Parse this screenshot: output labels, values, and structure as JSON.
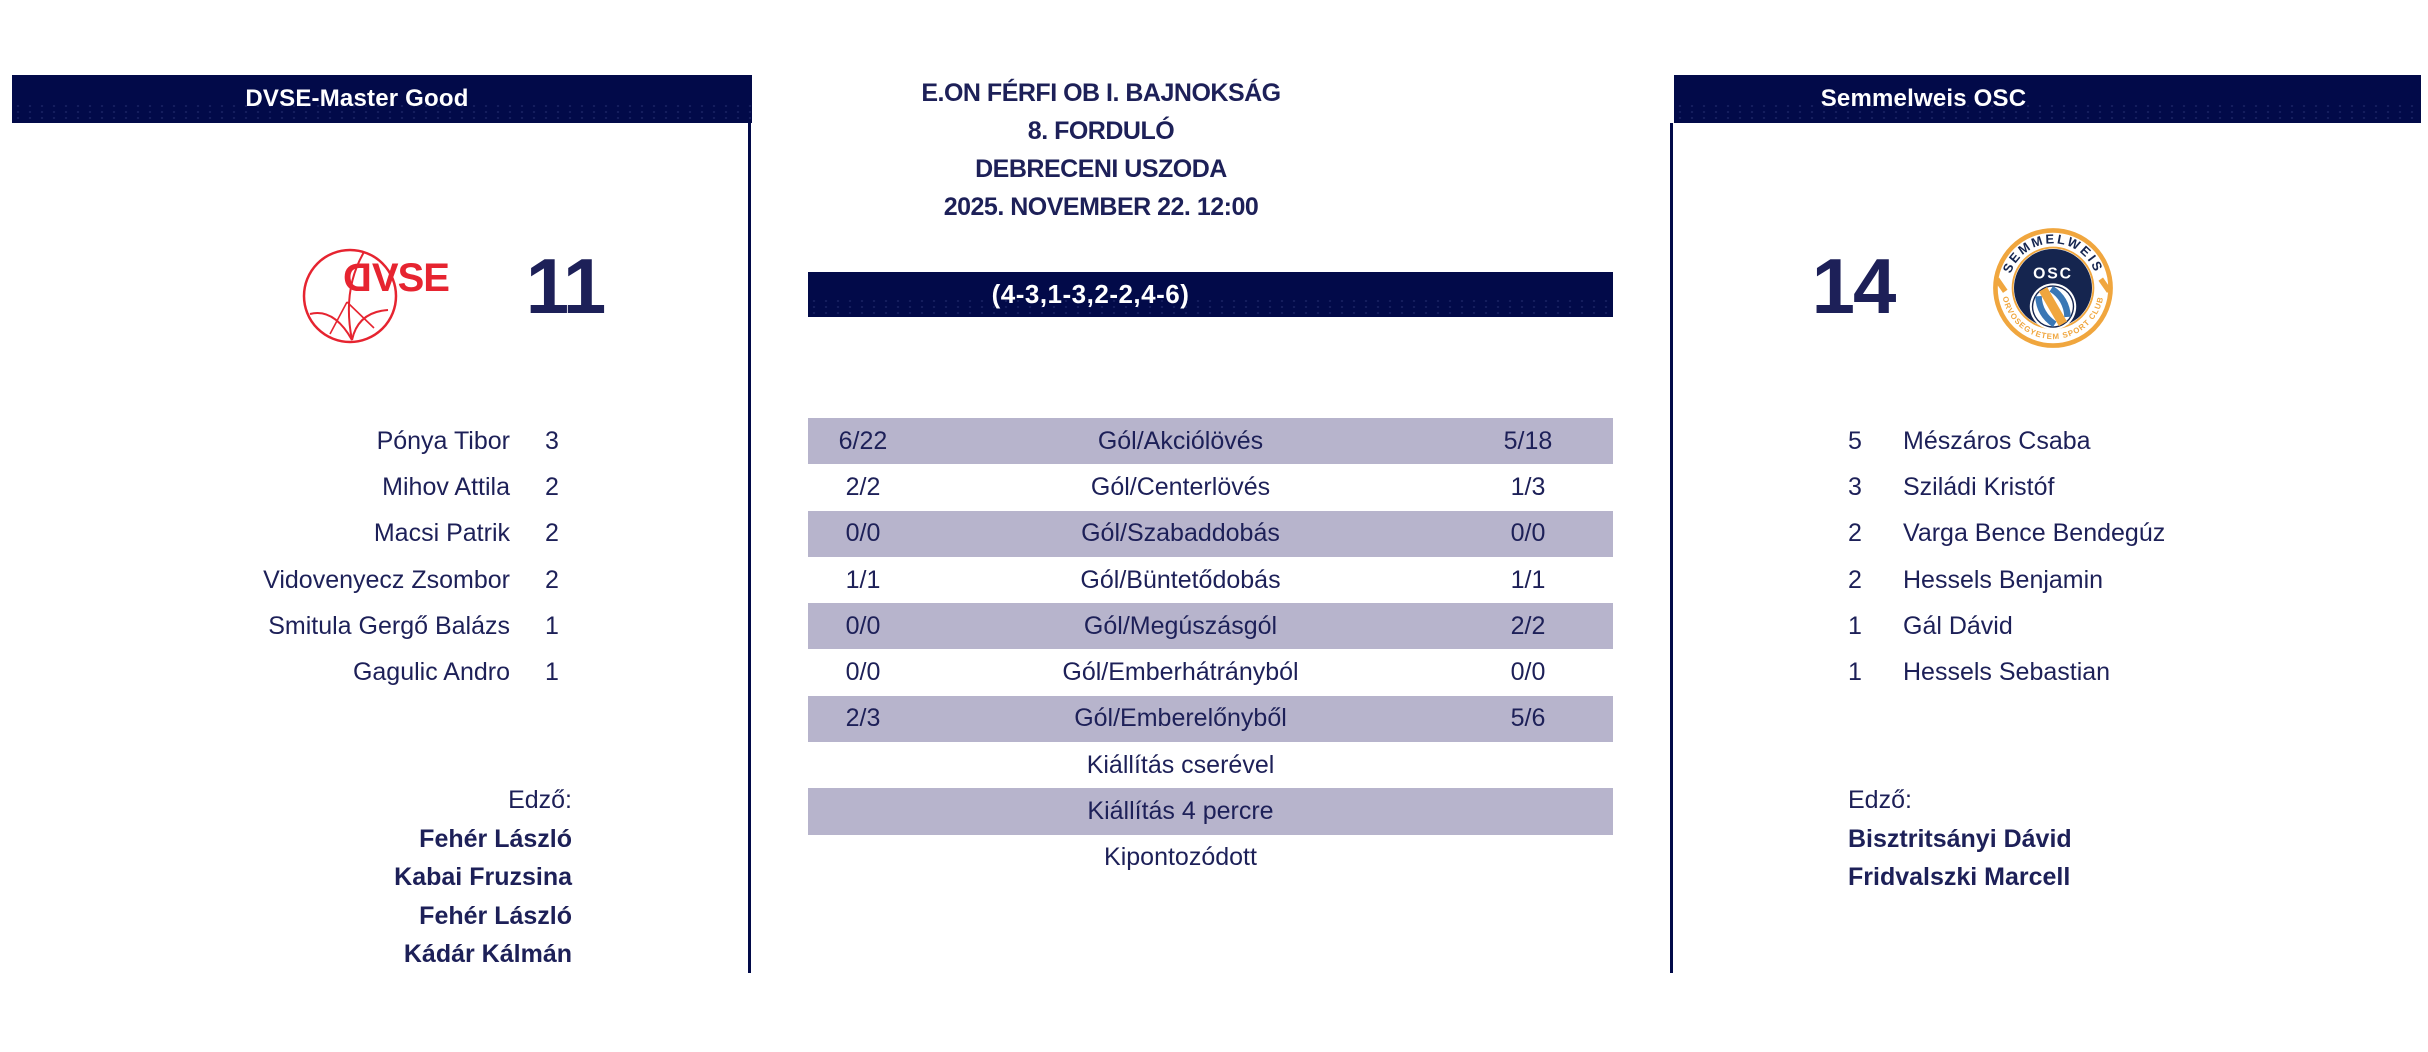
{
  "colors": {
    "navy": "#020a49",
    "text": "#1d2058",
    "lavender": "#b7b4cc",
    "red": "#e62430",
    "orange": "#f0a63e",
    "osc-blue": "#3a77b5",
    "osc-navy": "#15254f"
  },
  "match": {
    "competition": "E.ON FÉRFI OB I. BAJNOKSÁG",
    "round": "8. FORDULÓ",
    "venue": "DEBRECENI USZODA",
    "datetime": "2025. NOVEMBER 22. 12:00",
    "quarter_scores": "(4-3,1-3,2-2,4-6)"
  },
  "home": {
    "name": "DVSE-Master Good",
    "score": "11",
    "logo_text": "DVSE",
    "coach_label": "Edző:",
    "coaches": [
      "Fehér László",
      "Kabai Fruzsina",
      "Fehér László",
      "Kádár Kálmán"
    ],
    "players": [
      {
        "name": "Pónya Tibor",
        "goals": "3"
      },
      {
        "name": "Mihov Attila",
        "goals": "2"
      },
      {
        "name": "Macsi Patrik",
        "goals": "2"
      },
      {
        "name": "Vidovenyecz Zsombor",
        "goals": "2"
      },
      {
        "name": "Smitula Gergő Balázs",
        "goals": "1"
      },
      {
        "name": "Gagulic Andro",
        "goals": "1"
      }
    ]
  },
  "away": {
    "name": "Semmelweis OSC",
    "score": "14",
    "coach_label": "Edző:",
    "coaches": [
      "Bisztritsányi Dávid",
      "Fridvalszki Marcell"
    ],
    "players": [
      {
        "name": "Mészáros Csaba",
        "goals": "5"
      },
      {
        "name": "Sziládi Kristóf",
        "goals": "3"
      },
      {
        "name": "Varga Bence Bendegúz",
        "goals": "2"
      },
      {
        "name": "Hessels Benjamin",
        "goals": "2"
      },
      {
        "name": "Gál Dávid",
        "goals": "1"
      },
      {
        "name": "Hessels Sebastian",
        "goals": "1"
      }
    ],
    "logo": {
      "top_text": "SEMMELWEIS",
      "center_text": "OSC",
      "bottom_text": "ORVOSEGYETEM SPORT CLUB"
    }
  },
  "stats": [
    {
      "home": "6/22",
      "label": "Gól/Akciólövés",
      "away": "5/18"
    },
    {
      "home": "2/2",
      "label": "Gól/Centerlövés",
      "away": "1/3"
    },
    {
      "home": "0/0",
      "label": "Gól/Szabaddobás",
      "away": "0/0"
    },
    {
      "home": "1/1",
      "label": "Gól/Büntetődobás",
      "away": "1/1"
    },
    {
      "home": "0/0",
      "label": "Gól/Megúszásgól",
      "away": "2/2"
    },
    {
      "home": "0/0",
      "label": "Gól/Emberhátrányból",
      "away": "0/0"
    },
    {
      "home": "2/3",
      "label": "Gól/Emberelőnyből",
      "away": "5/6"
    },
    {
      "home": "",
      "label": "Kiállítás cserével",
      "away": ""
    },
    {
      "home": "",
      "label": "Kiállítás 4 percre",
      "away": ""
    },
    {
      "home": "",
      "label": "Kipontozódott",
      "away": ""
    }
  ]
}
